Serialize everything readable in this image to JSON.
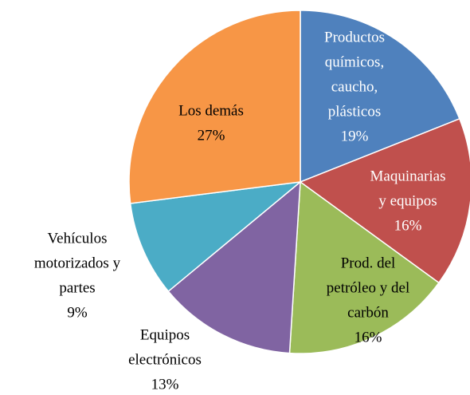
{
  "chart_data": {
    "type": "pie",
    "categories": [
      [
        "Productos",
        "químicos,",
        "caucho,",
        "plásticos"
      ],
      [
        "Maquinarias",
        "y equipos"
      ],
      [
        "Prod. del",
        "petróleo y del",
        "carbón"
      ],
      [
        "Equipos",
        "electrónicos"
      ],
      [
        "Vehículos",
        "motorizados y",
        "partes"
      ],
      [
        "Los demás"
      ]
    ],
    "values": [
      19,
      16,
      16,
      13,
      9,
      27
    ],
    "value_labels": [
      "19%",
      "16%",
      "16%",
      "13%",
      "9%",
      "27%"
    ],
    "colors": [
      "#4f81bd",
      "#c0504d",
      "#9bbb59",
      "#8064a2",
      "#4bacc6",
      "#f79646"
    ]
  }
}
